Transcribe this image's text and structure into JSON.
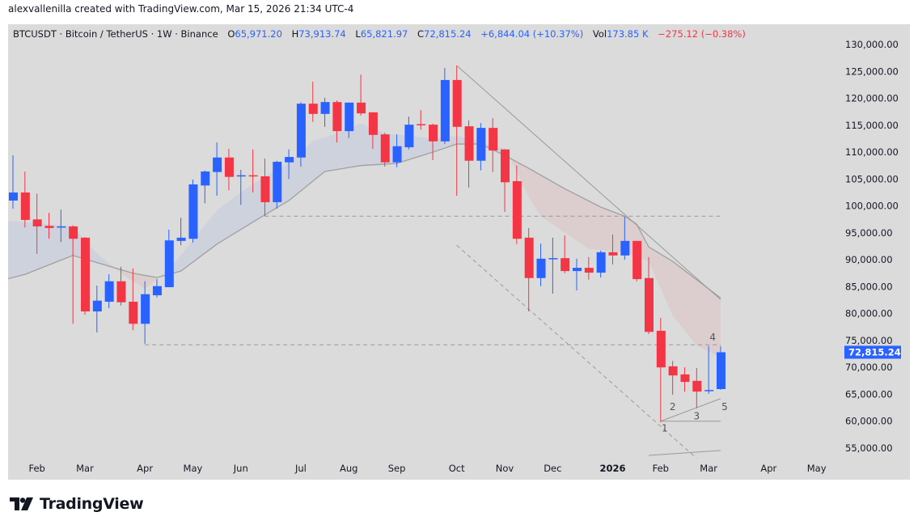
{
  "credit": "alexvallenilla created with TradingView.com, Mar 15, 2026 21:34 UTC-4",
  "legend": {
    "symbol": "BTCUSDT · Bitcoin / TetherUS · 1W · Binance",
    "o_label": "O",
    "o": "65,971.20",
    "h_label": "H",
    "h": "73,913.74",
    "l_label": "L",
    "l": "65,821.97",
    "c_label": "C",
    "c": "72,815.24",
    "change": "+6,844.04 (+10.37%)",
    "vol_label": "Vol",
    "vol": "173.85 K",
    "vol_change": "−275.12 (−0.38%)"
  },
  "brand": "TradingView",
  "colors": {
    "up": "#2962ff",
    "down": "#f23645",
    "background": "#dbdbdb",
    "ma": "#a0a0a0",
    "fill_up": "rgba(41,98,255,0.07)",
    "fill_down": "rgba(242,54,69,0.08)",
    "drawings": "#9a9a9a"
  },
  "chart_data": {
    "type": "candlestick",
    "interval": "1W",
    "ylim": [
      55000,
      130000
    ],
    "y_ticks": [
      "130,000.00",
      "125,000.00",
      "120,000.00",
      "115,000.00",
      "110,000.00",
      "105,000.00",
      "100,000.00",
      "95,000.00",
      "90,000.00",
      "85,000.00",
      "80,000.00",
      "75,000.00",
      "70,000.00",
      "65,000.00",
      "60,000.00",
      "55,000.00"
    ],
    "x_ticks": [
      {
        "label": "Feb",
        "date": "2025-02-03"
      },
      {
        "label": "Mar",
        "date": "2025-03-03"
      },
      {
        "label": "Apr",
        "date": "2025-04-07"
      },
      {
        "label": "May",
        "date": "2025-05-05"
      },
      {
        "label": "Jun",
        "date": "2025-06-02"
      },
      {
        "label": "Jul",
        "date": "2025-07-07"
      },
      {
        "label": "Aug",
        "date": "2025-08-04"
      },
      {
        "label": "Sep",
        "date": "2025-09-01"
      },
      {
        "label": "Oct",
        "date": "2025-10-06"
      },
      {
        "label": "Nov",
        "date": "2025-11-03"
      },
      {
        "label": "Dec",
        "date": "2025-12-01"
      },
      {
        "label": "2026",
        "date": "2026-01-05",
        "bold": true
      },
      {
        "label": "Feb",
        "date": "2026-02-02"
      },
      {
        "label": "Mar",
        "date": "2026-03-02"
      },
      {
        "label": "Apr",
        "date": "2026-04-06"
      },
      {
        "label": "May",
        "date": "2026-05-04"
      }
    ],
    "last_price": {
      "value": 72815.24,
      "label": "72,815.24"
    },
    "candles": [
      [
        "2025-01-20",
        101000,
        109400,
        99500,
        102500
      ],
      [
        "2025-01-27",
        102500,
        106400,
        96000,
        97400
      ],
      [
        "2025-02-03",
        97500,
        102300,
        91100,
        96200
      ],
      [
        "2025-02-10",
        96300,
        98700,
        93900,
        95900
      ],
      [
        "2025-02-17",
        96000,
        99300,
        93300,
        96200
      ],
      [
        "2025-02-24",
        96200,
        96400,
        78100,
        93900
      ],
      [
        "2025-03-03",
        94100,
        94200,
        79800,
        80400
      ],
      [
        "2025-03-10",
        80400,
        85200,
        76500,
        82400
      ],
      [
        "2025-03-17",
        82200,
        87300,
        81000,
        86000
      ],
      [
        "2025-03-24",
        86000,
        88700,
        81500,
        82100
      ],
      [
        "2025-03-31",
        82200,
        88400,
        76900,
        78100
      ],
      [
        "2025-04-07",
        78100,
        86000,
        74400,
        83600
      ],
      [
        "2025-04-14",
        83400,
        86400,
        83000,
        85100
      ],
      [
        "2025-04-21",
        84900,
        95600,
        84900,
        93600
      ],
      [
        "2025-04-28",
        93500,
        97800,
        92700,
        94100
      ],
      [
        "2025-05-05",
        93900,
        104900,
        93200,
        104000
      ],
      [
        "2025-05-12",
        103800,
        106600,
        100500,
        106400
      ],
      [
        "2025-05-19",
        106300,
        111800,
        101900,
        109000
      ],
      [
        "2025-05-26",
        109000,
        110600,
        102900,
        105400
      ],
      [
        "2025-06-02",
        105500,
        106700,
        100200,
        105700
      ],
      [
        "2025-06-09",
        105700,
        110500,
        102500,
        105600
      ],
      [
        "2025-06-16",
        105500,
        108800,
        98100,
        100700
      ],
      [
        "2025-06-23",
        100700,
        108400,
        99500,
        108200
      ],
      [
        "2025-06-30",
        108100,
        110500,
        105000,
        109100
      ],
      [
        "2025-07-07",
        109000,
        119300,
        107300,
        119000
      ],
      [
        "2025-07-14",
        119000,
        123100,
        115600,
        117100
      ],
      [
        "2025-07-21",
        117100,
        120100,
        114700,
        119300
      ],
      [
        "2025-07-28",
        119300,
        119600,
        111800,
        113900
      ],
      [
        "2025-08-04",
        113900,
        119200,
        112600,
        119200
      ],
      [
        "2025-08-11",
        119200,
        124400,
        116800,
        117200
      ],
      [
        "2025-08-18",
        117400,
        117400,
        110600,
        113200
      ],
      [
        "2025-08-25",
        113300,
        113600,
        107300,
        108100
      ],
      [
        "2025-09-01",
        108100,
        113300,
        107200,
        111100
      ],
      [
        "2025-09-08",
        110900,
        116600,
        110500,
        115100
      ],
      [
        "2025-09-15",
        115200,
        117800,
        114200,
        115000
      ],
      [
        "2025-09-22",
        115100,
        115300,
        108500,
        112000
      ],
      [
        "2025-09-29",
        112000,
        125600,
        111500,
        123400
      ],
      [
        "2025-10-06",
        123400,
        126100,
        101900,
        114700
      ],
      [
        "2025-10-13",
        114800,
        115900,
        103400,
        108400
      ],
      [
        "2025-10-20",
        108400,
        115400,
        106600,
        114500
      ],
      [
        "2025-10-27",
        114500,
        116300,
        106300,
        110300
      ],
      [
        "2025-11-03",
        110500,
        110500,
        98900,
        104400
      ],
      [
        "2025-11-10",
        104600,
        107500,
        92900,
        93900
      ],
      [
        "2025-11-17",
        94100,
        95900,
        80400,
        86600
      ],
      [
        "2025-11-24",
        86600,
        93000,
        85100,
        90200
      ],
      [
        "2025-12-01",
        90100,
        94100,
        83700,
        90300
      ],
      [
        "2025-12-08",
        90300,
        94500,
        87500,
        87900
      ],
      [
        "2025-12-15",
        87900,
        90200,
        84300,
        88500
      ],
      [
        "2025-12-22",
        88500,
        90500,
        86300,
        87600
      ],
      [
        "2025-12-29",
        87600,
        91700,
        86700,
        91400
      ],
      [
        "2026-01-05",
        91400,
        94700,
        89100,
        90800
      ],
      [
        "2026-01-12",
        90800,
        98000,
        90000,
        93500
      ],
      [
        "2026-01-19",
        93500,
        93500,
        86000,
        86400
      ],
      [
        "2026-01-26",
        86600,
        90500,
        76200,
        76600
      ],
      [
        "2026-02-02",
        76800,
        79200,
        59800,
        70000
      ],
      [
        "2026-02-09",
        70200,
        71200,
        64900,
        68500
      ],
      [
        "2026-02-16",
        68700,
        70000,
        65500,
        67300
      ],
      [
        "2026-02-23",
        67500,
        69900,
        62400,
        65500
      ],
      [
        "2026-03-02",
        65600,
        74000,
        65100,
        65800
      ],
      [
        "2026-03-09",
        65971.2,
        73913.74,
        65821.97,
        72815.24
      ]
    ],
    "ma_line": [
      [
        "2025-01-20",
        86400
      ],
      [
        "2025-02-24",
        90800
      ],
      [
        "2025-03-31",
        87500
      ],
      [
        "2025-04-14",
        86700
      ],
      [
        "2025-04-28",
        87900
      ],
      [
        "2025-05-19",
        92900
      ],
      [
        "2025-06-09",
        97000
      ],
      [
        "2025-06-30",
        101000
      ],
      [
        "2025-07-21",
        106400
      ],
      [
        "2025-08-11",
        107500
      ],
      [
        "2025-09-01",
        107900
      ],
      [
        "2025-09-22",
        110000
      ],
      [
        "2025-10-06",
        111500
      ],
      [
        "2025-10-20",
        111500
      ],
      [
        "2025-11-03",
        109400
      ],
      [
        "2025-11-17",
        107000
      ],
      [
        "2025-12-08",
        103200
      ],
      [
        "2025-12-29",
        99800
      ],
      [
        "2026-01-12",
        98100
      ],
      [
        "2026-01-19",
        96600
      ],
      [
        "2026-01-26",
        92400
      ],
      [
        "2026-02-09",
        89700
      ],
      [
        "2026-03-09",
        82900
      ]
    ],
    "band_line": [
      [
        "2025-01-20",
        97200
      ],
      [
        "2025-02-24",
        96200
      ],
      [
        "2025-03-10",
        91200
      ],
      [
        "2025-03-24",
        87500
      ],
      [
        "2025-04-07",
        84600
      ],
      [
        "2025-04-21",
        88200
      ],
      [
        "2025-05-05",
        93600
      ],
      [
        "2025-05-19",
        99200
      ],
      [
        "2025-06-02",
        102500
      ],
      [
        "2025-06-16",
        105500
      ],
      [
        "2025-06-30",
        108000
      ],
      [
        "2025-07-14",
        112000
      ],
      [
        "2025-07-28",
        113500
      ],
      [
        "2025-08-11",
        115300
      ],
      [
        "2025-08-25",
        113500
      ],
      [
        "2025-09-08",
        113000
      ],
      [
        "2025-09-22",
        112500
      ],
      [
        "2025-10-06",
        113000
      ],
      [
        "2025-10-20",
        112000
      ],
      [
        "2025-10-27",
        111000
      ],
      [
        "2025-11-03",
        110800
      ],
      [
        "2025-11-17",
        101700
      ],
      [
        "2025-11-24",
        98100
      ],
      [
        "2025-12-22",
        92000
      ],
      [
        "2026-01-12",
        91400
      ],
      [
        "2026-01-26",
        89700
      ],
      [
        "2026-02-09",
        79600
      ],
      [
        "2026-02-23",
        74100
      ],
      [
        "2026-03-09",
        71800
      ]
    ],
    "drawings": [
      {
        "kind": "line",
        "style": "solid",
        "from": [
          "2025-10-06",
          126100
        ],
        "to": [
          "2026-03-09",
          82600
        ]
      },
      {
        "kind": "line",
        "style": "dashed",
        "from": [
          "2025-06-16",
          98100
        ],
        "to": [
          "2026-03-09",
          98100
        ]
      },
      {
        "kind": "line",
        "style": "dashed",
        "from": [
          "2025-04-07",
          74200
        ],
        "to": [
          "2026-03-09",
          74200
        ]
      },
      {
        "kind": "line",
        "style": "dashed",
        "from": [
          "2025-10-06",
          92700
        ],
        "to": [
          "2026-02-23",
          53100
        ]
      },
      {
        "kind": "line",
        "style": "solid",
        "from": [
          "2026-02-02",
          60000
        ],
        "to": [
          "2026-03-09",
          64200
        ]
      },
      {
        "kind": "line",
        "style": "solid",
        "from": [
          "2026-02-02",
          60000
        ],
        "to": [
          "2026-03-09",
          60000
        ]
      },
      {
        "kind": "line",
        "style": "solid",
        "from": [
          "2026-01-26",
          53650
        ],
        "to": [
          "2026-03-09",
          54550
        ]
      }
    ],
    "wave_labels": [
      {
        "text": "1",
        "date": "2026-02-02",
        "price": 58700
      },
      {
        "text": "2",
        "date": "2026-02-09",
        "price": 62700
      },
      {
        "text": "3",
        "date": "2026-02-23",
        "price": 60900
      },
      {
        "text": "4",
        "date": "2026-03-02",
        "price": 75600
      },
      {
        "text": "5",
        "date": "2026-03-09",
        "price": 62700
      }
    ]
  }
}
